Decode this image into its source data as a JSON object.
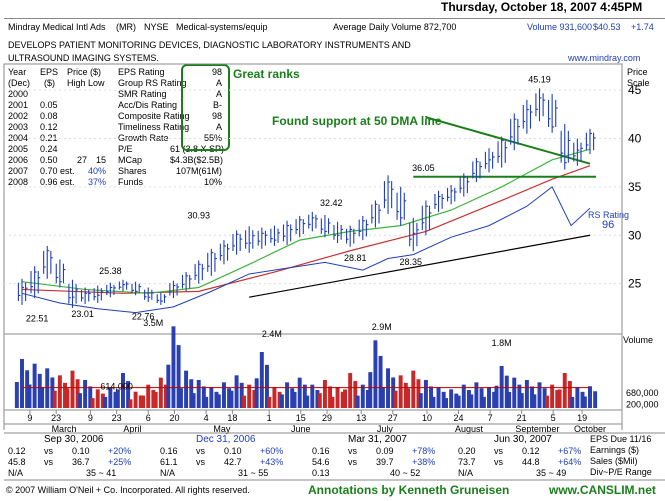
{
  "header": {
    "date": "Thursday, October 18, 2007 4:45PM",
    "company": "Mindray Medical Intl Ads",
    "ticker": "(MR)",
    "exchange": "NYSE",
    "industry": "Medical-systems/equip",
    "avg_volume": "Average Daily Volume 872,700",
    "volume": "Volume 931,600",
    "price": "$40.53",
    "change": "+1.74",
    "description_1": "DEVELOPS PATIENT MONITORING DEVICES, DIAGNOSTIC LABORATORY INSTRUMENTS AND",
    "description_2": "ULTRASOUND IMAGING SYSTEMS.",
    "website": "www.mindray.com"
  },
  "fundamentals": {
    "col_year": "Year",
    "col_year2": "(Dec)",
    "col_eps": "EPS",
    "col_eps2": "($)",
    "col_price": "Price ($)",
    "col_price2": "High Low",
    "rows": [
      {
        "year": "2000",
        "eps": "",
        "high": "",
        "low": "",
        "est": ""
      },
      {
        "year": "2001",
        "eps": "0.05",
        "high": "",
        "low": "",
        "est": ""
      },
      {
        "year": "2002",
        "eps": "0.08",
        "high": "",
        "low": "",
        "est": ""
      },
      {
        "year": "2003",
        "eps": "0.12",
        "high": "",
        "low": "",
        "est": ""
      },
      {
        "year": "2004",
        "eps": "0.21",
        "high": "",
        "low": "",
        "est": ""
      },
      {
        "year": "2005",
        "eps": "0.24",
        "high": "",
        "low": "",
        "est": ""
      },
      {
        "year": "2006",
        "eps": "0.50",
        "high": "27",
        "low": "15",
        "est": ""
      },
      {
        "year": "2007",
        "eps": "0.70 est.",
        "high": "",
        "low": "",
        "est": "40%"
      },
      {
        "year": "2008",
        "eps": "0.96 est.",
        "high": "",
        "low": "",
        "est": "37%"
      }
    ]
  },
  "ratings": [
    {
      "label": "EPS Rating",
      "value": "98"
    },
    {
      "label": "Group RS Rating",
      "value": "A"
    },
    {
      "label": "SMR Rating",
      "value": "A"
    },
    {
      "label": "Acc/Dis Rating",
      "value": "B-"
    },
    {
      "label": "Composite Rating",
      "value": "98"
    },
    {
      "label": "Timeliness Rating",
      "value": "A"
    },
    {
      "label": "Growth Rate",
      "value": "55%"
    },
    {
      "label": "P/E",
      "value": "61 (3.8 X SP)"
    },
    {
      "label": "MCap",
      "value": "$4.3B($2.5B)"
    },
    {
      "label": "Shares",
      "value": "107M(61M)"
    },
    {
      "label": "Funds",
      "value": "10%"
    }
  ],
  "annotations": {
    "great_ranks": "Great ranks",
    "found_support": "Found support at 50 DMA line",
    "rs_rating_label": "RS Rating",
    "rs_rating_value": "96",
    "price_scale_1": "Price",
    "price_scale_2": "Scale",
    "volume_label": "Volume"
  },
  "colors": {
    "ann_green": "#1a7f1a",
    "price_bar": "#1f3fb8",
    "ma50": "#3cb43c",
    "ma200": "#c83232",
    "rs_line": "#1f3fb8",
    "volume_bar": "#2a3fb0",
    "volume_down": "#c82828"
  },
  "chart_data": {
    "type": "line",
    "title": "Mindray Medical Intl Ads (MR) daily price and volume",
    "price_axis": {
      "ylim": [
        20,
        47.5
      ],
      "ticks": [
        25,
        30,
        35,
        40,
        45
      ]
    },
    "labeled_prices": [
      {
        "label": "22.51",
        "value": 22.51
      },
      {
        "label": "23.01",
        "value": 23.01
      },
      {
        "label": "25.38",
        "value": 25.38
      },
      {
        "label": "22.76",
        "value": 22.76
      },
      {
        "label": "30.93",
        "value": 30.93
      },
      {
        "label": "32.42",
        "value": 32.42
      },
      {
        "label": "28.81",
        "value": 28.81
      },
      {
        "label": "28.35",
        "value": 28.35
      },
      {
        "label": "36.05",
        "value": 36.05
      },
      {
        "label": "45.19",
        "value": 45.19
      }
    ],
    "price_series": [
      {
        "x": 0,
        "low": 22.8,
        "high": 25.5,
        "close": 24.6
      },
      {
        "x": 1,
        "low": 23.5,
        "high": 26.8,
        "close": 26.2
      },
      {
        "x": 2,
        "low": 25.5,
        "high": 28.9,
        "close": 28.4
      },
      {
        "x": 3,
        "low": 24.6,
        "high": 27.5,
        "close": 25.2
      },
      {
        "x": 4,
        "low": 22.5,
        "high": 25.4,
        "close": 23.6
      },
      {
        "x": 5,
        "low": 22.9,
        "high": 24.6,
        "close": 24.0
      },
      {
        "x": 6,
        "low": 23.0,
        "high": 24.8,
        "close": 23.8
      },
      {
        "x": 7,
        "low": 23.6,
        "high": 25.1,
        "close": 24.6
      },
      {
        "x": 8,
        "low": 24.2,
        "high": 25.4,
        "close": 24.9
      },
      {
        "x": 9,
        "low": 23.8,
        "high": 25.2,
        "close": 24.2
      },
      {
        "x": 10,
        "low": 23.1,
        "high": 24.6,
        "close": 23.6
      },
      {
        "x": 11,
        "low": 22.8,
        "high": 24.1,
        "close": 23.2
      },
      {
        "x": 12,
        "low": 23.5,
        "high": 25.3,
        "close": 24.8
      },
      {
        "x": 13,
        "low": 24.2,
        "high": 26.2,
        "close": 25.8
      },
      {
        "x": 14,
        "low": 25.0,
        "high": 27.4,
        "close": 27.0
      },
      {
        "x": 15,
        "low": 25.8,
        "high": 28.6,
        "close": 28.2
      },
      {
        "x": 16,
        "low": 27.0,
        "high": 29.5,
        "close": 28.9
      },
      {
        "x": 17,
        "low": 28.0,
        "high": 30.5,
        "close": 30.1
      },
      {
        "x": 18,
        "low": 28.2,
        "high": 30.93,
        "close": 29.2
      },
      {
        "x": 19,
        "low": 28.6,
        "high": 30.8,
        "close": 30.2
      },
      {
        "x": 20,
        "low": 28.9,
        "high": 31.0,
        "close": 29.5
      },
      {
        "x": 21,
        "low": 29.0,
        "high": 31.5,
        "close": 31.0
      },
      {
        "x": 22,
        "low": 29.8,
        "high": 32.0,
        "close": 31.6
      },
      {
        "x": 23,
        "low": 30.4,
        "high": 32.42,
        "close": 31.8
      },
      {
        "x": 24,
        "low": 29.8,
        "high": 32.1,
        "close": 30.4
      },
      {
        "x": 25,
        "low": 29.2,
        "high": 31.4,
        "close": 30.0
      },
      {
        "x": 26,
        "low": 28.81,
        "high": 31.0,
        "close": 30.6
      },
      {
        "x": 27,
        "low": 29.5,
        "high": 32.0,
        "close": 31.5
      },
      {
        "x": 28,
        "low": 30.8,
        "high": 33.6,
        "close": 33.2
      },
      {
        "x": 29,
        "low": 32.2,
        "high": 36.2,
        "close": 35.5
      },
      {
        "x": 30,
        "low": 31.0,
        "high": 35.0,
        "close": 31.8
      },
      {
        "x": 31,
        "low": 28.35,
        "high": 31.8,
        "close": 30.2
      },
      {
        "x": 32,
        "low": 30.0,
        "high": 33.6,
        "close": 33.0
      },
      {
        "x": 33,
        "low": 32.4,
        "high": 34.6,
        "close": 34.0
      },
      {
        "x": 34,
        "low": 33.2,
        "high": 35.2,
        "close": 34.6
      },
      {
        "x": 35,
        "low": 34.0,
        "high": 36.4,
        "close": 36.0
      },
      {
        "x": 36,
        "low": 35.5,
        "high": 38.0,
        "close": 37.6
      },
      {
        "x": 37,
        "low": 36.5,
        "high": 39.0,
        "close": 37.8
      },
      {
        "x": 38,
        "low": 37.0,
        "high": 40.2,
        "close": 39.8
      },
      {
        "x": 39,
        "low": 38.8,
        "high": 42.6,
        "close": 42.0
      },
      {
        "x": 40,
        "low": 40.5,
        "high": 44.0,
        "close": 43.0
      },
      {
        "x": 41,
        "low": 41.8,
        "high": 45.19,
        "close": 44.2
      },
      {
        "x": 42,
        "low": 40.6,
        "high": 44.6,
        "close": 41.2
      },
      {
        "x": 43,
        "low": 36.8,
        "high": 41.5,
        "close": 37.5
      },
      {
        "x": 44,
        "low": 37.2,
        "high": 40.0,
        "close": 38.8
      },
      {
        "x": 45,
        "low": 38.4,
        "high": 41.0,
        "close": 40.53
      }
    ],
    "ma50": [
      {
        "x": 0,
        "y": 25.2
      },
      {
        "x": 5,
        "y": 24.4
      },
      {
        "x": 10,
        "y": 24.0
      },
      {
        "x": 14,
        "y": 24.6
      },
      {
        "x": 18,
        "y": 27.0
      },
      {
        "x": 22,
        "y": 29.5
      },
      {
        "x": 26,
        "y": 30.4
      },
      {
        "x": 30,
        "y": 31.0
      },
      {
        "x": 34,
        "y": 32.6
      },
      {
        "x": 38,
        "y": 35.0
      },
      {
        "x": 42,
        "y": 37.8
      },
      {
        "x": 45,
        "y": 38.9
      }
    ],
    "ma200": [
      {
        "x": 0,
        "y": 24.4
      },
      {
        "x": 8,
        "y": 24.0
      },
      {
        "x": 14,
        "y": 24.2
      },
      {
        "x": 20,
        "y": 26.2
      },
      {
        "x": 26,
        "y": 28.4
      },
      {
        "x": 32,
        "y": 30.4
      },
      {
        "x": 38,
        "y": 33.6
      },
      {
        "x": 42,
        "y": 35.8
      },
      {
        "x": 45,
        "y": 37.2
      }
    ],
    "rs_line": [
      {
        "x": 0,
        "y": 24.0
      },
      {
        "x": 3,
        "y": 23.0
      },
      {
        "x": 6,
        "y": 22.4
      },
      {
        "x": 9,
        "y": 22.0
      },
      {
        "x": 12,
        "y": 22.6
      },
      {
        "x": 15,
        "y": 24.2
      },
      {
        "x": 18,
        "y": 26.0
      },
      {
        "x": 21,
        "y": 26.6
      },
      {
        "x": 24,
        "y": 27.2
      },
      {
        "x": 27,
        "y": 26.4
      },
      {
        "x": 29,
        "y": 27.6
      },
      {
        "x": 31,
        "y": 28.0
      },
      {
        "x": 34,
        "y": 29.8
      },
      {
        "x": 37,
        "y": 31.0
      },
      {
        "x": 40,
        "y": 33.0
      },
      {
        "x": 42,
        "y": 35.0
      },
      {
        "x": 43.5,
        "y": 31.0
      },
      {
        "x": 45,
        "y": 32.8
      }
    ],
    "support_level": 36.05,
    "downtrend_line": [
      {
        "x": 32,
        "y": 42.2
      },
      {
        "x": 45,
        "y": 37.4
      }
    ],
    "uptrend_line": [
      {
        "x": 18,
        "y": 23.6
      },
      {
        "x": 45,
        "y": 30.0
      }
    ],
    "volume_axis": {
      "ylim": [
        0,
        3000000
      ],
      "ticks": [
        {
          "label": "680,000",
          "value": 680000
        },
        {
          "label": "200,000",
          "value": 200000
        }
      ]
    },
    "volume_labels": [
      {
        "label": "614,000",
        "value": 614000
      },
      {
        "label": "3.5M",
        "value": 3500000
      },
      {
        "label": "2.4M",
        "value": 2400000
      },
      {
        "label": "2.9M",
        "value": 2900000
      },
      {
        "label": "1.8M",
        "value": 1800000
      }
    ],
    "volume": [
      {
        "x": 0,
        "v": 2100000,
        "up": true
      },
      {
        "x": 1,
        "v": 1900000,
        "up": true
      },
      {
        "x": 2,
        "v": 1700000,
        "up": true
      },
      {
        "x": 3,
        "v": 1400000,
        "up": false
      },
      {
        "x": 4,
        "v": 1600000,
        "up": false
      },
      {
        "x": 5,
        "v": 1200000,
        "up": true
      },
      {
        "x": 6,
        "v": 800000,
        "up": false
      },
      {
        "x": 7,
        "v": 900000,
        "up": true
      },
      {
        "x": 8,
        "v": 1500000,
        "up": true
      },
      {
        "x": 9,
        "v": 700000,
        "up": false
      },
      {
        "x": 10,
        "v": 1000000,
        "up": false
      },
      {
        "x": 11,
        "v": 1300000,
        "up": false
      },
      {
        "x": 12,
        "v": 3500000,
        "up": true
      },
      {
        "x": 13,
        "v": 1600000,
        "up": true
      },
      {
        "x": 14,
        "v": 1200000,
        "up": true
      },
      {
        "x": 15,
        "v": 900000,
        "up": true
      },
      {
        "x": 16,
        "v": 1100000,
        "up": true
      },
      {
        "x": 17,
        "v": 1400000,
        "up": true
      },
      {
        "x": 18,
        "v": 1000000,
        "up": false
      },
      {
        "x": 19,
        "v": 2400000,
        "up": true
      },
      {
        "x": 20,
        "v": 900000,
        "up": false
      },
      {
        "x": 21,
        "v": 1100000,
        "up": true
      },
      {
        "x": 22,
        "v": 1300000,
        "up": true
      },
      {
        "x": 23,
        "v": 1000000,
        "up": true
      },
      {
        "x": 24,
        "v": 1200000,
        "up": false
      },
      {
        "x": 25,
        "v": 900000,
        "up": false
      },
      {
        "x": 26,
        "v": 1500000,
        "up": false
      },
      {
        "x": 27,
        "v": 1000000,
        "up": true
      },
      {
        "x": 28,
        "v": 2900000,
        "up": true
      },
      {
        "x": 29,
        "v": 1700000,
        "up": true
      },
      {
        "x": 30,
        "v": 1400000,
        "up": false
      },
      {
        "x": 31,
        "v": 1600000,
        "up": false
      },
      {
        "x": 32,
        "v": 1200000,
        "up": true
      },
      {
        "x": 33,
        "v": 900000,
        "up": true
      },
      {
        "x": 34,
        "v": 800000,
        "up": true
      },
      {
        "x": 35,
        "v": 1000000,
        "up": true
      },
      {
        "x": 36,
        "v": 1100000,
        "up": true
      },
      {
        "x": 37,
        "v": 900000,
        "up": true
      },
      {
        "x": 38,
        "v": 1800000,
        "up": true
      },
      {
        "x": 39,
        "v": 1300000,
        "up": true
      },
      {
        "x": 40,
        "v": 1200000,
        "up": true
      },
      {
        "x": 41,
        "v": 1100000,
        "up": true
      },
      {
        "x": 42,
        "v": 1000000,
        "up": false
      },
      {
        "x": 43,
        "v": 1500000,
        "up": false
      },
      {
        "x": 44,
        "v": 900000,
        "up": true
      },
      {
        "x": 45,
        "v": 931600,
        "up": true
      }
    ],
    "avg_volume_level": 872700,
    "x_ticks": [
      {
        "x": 0.3,
        "label": "9"
      },
      {
        "x": 1.3,
        "label": "23"
      },
      {
        "x": 2.6,
        "label": "9"
      },
      {
        "x": 3.6,
        "label": "23"
      },
      {
        "x": 4.8,
        "label": "6"
      },
      {
        "x": 5.8,
        "label": "20"
      },
      {
        "x": 7.0,
        "label": "4"
      },
      {
        "x": 8.0,
        "label": "18"
      },
      {
        "x": 9.4,
        "label": "1"
      },
      {
        "x": 10.6,
        "label": "15"
      },
      {
        "x": 11.6,
        "label": "29"
      },
      {
        "x": 12.9,
        "label": "13"
      },
      {
        "x": 14.1,
        "label": "27"
      },
      {
        "x": 15.4,
        "label": "10"
      },
      {
        "x": 16.6,
        "label": "24"
      },
      {
        "x": 17.8,
        "label": "7"
      },
      {
        "x": 19.0,
        "label": "21"
      },
      {
        "x": 20.2,
        "label": "5"
      },
      {
        "x": 21.3,
        "label": "19"
      }
    ],
    "x_months": [
      {
        "x": 1.6,
        "label": "March"
      },
      {
        "x": 4.2,
        "label": "April"
      },
      {
        "x": 7.6,
        "label": "May"
      },
      {
        "x": 10.6,
        "label": "June"
      },
      {
        "x": 13.8,
        "label": "July"
      },
      {
        "x": 17.0,
        "label": "August"
      },
      {
        "x": 19.6,
        "label": "September"
      },
      {
        "x": 21.6,
        "label": "October"
      }
    ]
  },
  "quarters": [
    {
      "date": "Sep 30, 2006",
      "eps_now": "0.12",
      "eps_vs": "vs",
      "eps_prev": "0.10",
      "eps_chg": "+20%",
      "sales_now": "45.8",
      "sales_vs": "vs",
      "sales_prev": "36.7",
      "sales_chg": "+25%",
      "pe": "N/A",
      "pe_range": "35 ~ 41",
      "date_color": "#000000"
    },
    {
      "date": "Dec 31, 2006",
      "eps_now": "0.16",
      "eps_vs": "vs",
      "eps_prev": "0.10",
      "eps_chg": "+60%",
      "sales_now": "61.1",
      "sales_vs": "vs",
      "sales_prev": "42.7",
      "sales_chg": "+43%",
      "pe": "N/A",
      "pe_range": "31 ~ 55",
      "date_color": "#1f3fb8"
    },
    {
      "date": "Mar 31, 2007",
      "eps_now": "0.16",
      "eps_vs": "vs",
      "eps_prev": "0.09",
      "eps_chg": "+78%",
      "sales_now": "54.6",
      "sales_vs": "vs",
      "sales_prev": "39.7",
      "sales_chg": "+38%",
      "pe": "0.13",
      "pe_range": "40 ~ 52",
      "date_color": "#000000"
    },
    {
      "date": "Jun 30, 2007",
      "eps_now": "0.20",
      "eps_vs": "vs",
      "eps_prev": "0.12",
      "eps_chg": "+67%",
      "sales_now": "73.7",
      "sales_vs": "vs",
      "sales_prev": "44.8",
      "sales_chg": "+64%",
      "pe": "N/A",
      "pe_range": "35 ~ 49",
      "date_color": "#000000"
    }
  ],
  "legend_box": {
    "eps_due": "EPS Due 11/16",
    "earnings": "Earnings ($)",
    "sales": "Sales ($Mil)",
    "div_pe": "Div~P/E Range"
  },
  "footer": {
    "copyright": "© 2007 William O'Neil + Co. Incorporated.  All rights reserved.",
    "annotations": "Annotations by Kenneth Gruneisen",
    "site": "www.CANSLIM.net"
  }
}
